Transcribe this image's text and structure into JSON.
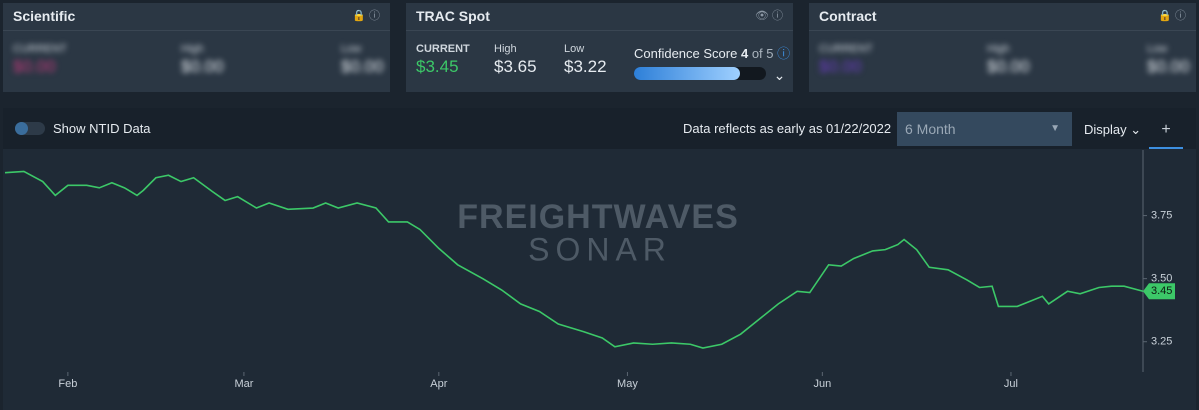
{
  "cards": [
    {
      "title": "Scientific",
      "current_label": "CURRENT",
      "current": "$0.00",
      "high_label": "High",
      "high": "$0.00",
      "low_label": "Low",
      "low": "$0.00"
    },
    {
      "title": "TRAC Spot",
      "current_label": "CURRENT",
      "current": "$3.45",
      "high_label": "High",
      "high": "$3.65",
      "low_label": "Low",
      "low": "$3.22",
      "confidence_label": "Confidence Score",
      "confidence": 4,
      "confidence_of": "of",
      "confidence_max": 5
    },
    {
      "title": "Contract",
      "current_label": "CURRENT",
      "current": "$0.00",
      "high_label": "High",
      "high": "$0.00",
      "low_label": "Low",
      "low": "$0.00"
    }
  ],
  "toolbar": {
    "toggle_label": "Show NTID Data",
    "data_note": "Data reflects as early as 01/22/2022",
    "range": "6 Month",
    "display": "Display"
  },
  "watermark": {
    "brand": "FREIGHTWAVES",
    "product": "SONAR"
  },
  "chart_data": {
    "type": "line",
    "x": [
      0,
      3,
      6,
      8,
      10,
      13,
      15,
      17,
      19,
      21,
      22,
      24,
      26,
      28,
      30,
      33,
      35,
      37,
      40,
      42,
      45,
      49,
      51,
      53,
      56,
      59,
      61,
      64,
      66,
      69,
      72,
      76,
      79,
      82,
      85,
      88,
      92,
      95,
      97,
      100,
      103,
      106,
      109,
      111,
      114,
      117,
      120,
      123,
      126,
      128,
      131,
      133,
      135,
      138,
      140,
      142,
      143,
      145,
      147,
      150,
      153,
      155,
      157,
      158,
      161,
      163,
      165,
      166,
      169,
      171,
      174,
      176,
      178,
      181
    ],
    "series": [
      {
        "name": "TRAC Spot",
        "color": "#3cc868",
        "values": [
          3.92,
          3.925,
          3.885,
          3.83,
          3.87,
          3.87,
          3.86,
          3.88,
          3.86,
          3.83,
          3.85,
          3.9,
          3.91,
          3.885,
          3.9,
          3.845,
          3.81,
          3.825,
          3.78,
          3.8,
          3.775,
          3.78,
          3.8,
          3.78,
          3.8,
          3.78,
          3.725,
          3.725,
          3.695,
          3.62,
          3.555,
          3.5,
          3.455,
          3.4,
          3.37,
          3.32,
          3.29,
          3.265,
          3.23,
          3.245,
          3.24,
          3.245,
          3.24,
          3.225,
          3.24,
          3.28,
          3.34,
          3.4,
          3.45,
          3.445,
          3.555,
          3.55,
          3.58,
          3.61,
          3.615,
          3.635,
          3.655,
          3.615,
          3.545,
          3.535,
          3.495,
          3.465,
          3.47,
          3.39,
          3.39,
          3.41,
          3.43,
          3.4,
          3.45,
          3.44,
          3.465,
          3.47,
          3.47,
          3.45
        ]
      }
    ],
    "xlim": [
      0,
      181
    ],
    "xticks": [
      {
        "value": 10,
        "label": "Feb"
      },
      {
        "value": 38,
        "label": "Mar"
      },
      {
        "value": 69,
        "label": "Apr"
      },
      {
        "value": 99,
        "label": "May"
      },
      {
        "value": 130,
        "label": "Jun"
      },
      {
        "value": 160,
        "label": "Jul"
      }
    ],
    "ylim": [
      3.13,
      4.01
    ],
    "yticks": [
      3.25,
      {
        "value": 3.5,
        "label": "3.50"
      },
      3.75
    ]
  }
}
